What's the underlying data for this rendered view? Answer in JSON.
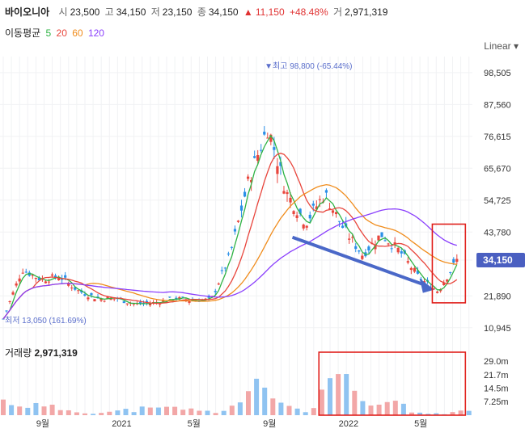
{
  "header": {
    "name": "바이오니아",
    "open_label": "시",
    "open": "23,500",
    "high_label": "고",
    "high": "34,150",
    "low_label": "저",
    "low": "23,150",
    "close_label": "종",
    "close": "34,150",
    "change_arrow": "▲",
    "change": "11,150",
    "change_pct": "+48.48%",
    "volume_label": "거",
    "volume": "2,971,319"
  },
  "ma_legend": {
    "label": "이동평균",
    "periods": [
      {
        "value": "5",
        "color": "#2fb344"
      },
      {
        "value": "20",
        "color": "#e8453c"
      },
      {
        "value": "60",
        "color": "#f08c1c"
      },
      {
        "value": "120",
        "color": "#8a3ffc"
      }
    ]
  },
  "scale_label": "Linear",
  "volume_panel": {
    "title": "거래량",
    "value": "2,971,319"
  },
  "colors": {
    "up": "#e8453c",
    "down": "#2a8fe8",
    "vol_up": "#f2a7a7",
    "vol_down": "#8fc3f1",
    "last_price_bg": "#4a5fc1",
    "arrow": "#4a68c8",
    "highlight_box": "#e0201c"
  },
  "chart_data": [
    {
      "type": "candlestick",
      "title": "",
      "x_ticks": [
        "9월",
        "2021",
        "5월",
        "9월",
        "2022",
        "5월"
      ],
      "y_ticks": [
        "98,505",
        "87,560",
        "76,615",
        "65,670",
        "54,725",
        "43,780",
        "34,150",
        "21,890",
        "10,945"
      ],
      "ylim": [
        7000,
        104000
      ],
      "last_price": "34,150",
      "annotations": [
        {
          "label": "▼최고 98,800 (-65.44%)",
          "x": "2021-09",
          "y": 98800
        },
        {
          "label": "최저 13,050 (161.69%)",
          "x": "2020-07",
          "y": 13050
        }
      ],
      "series": [
        {
          "name": "5",
          "type": "line",
          "color": "#2fb344"
        },
        {
          "name": "20",
          "type": "line",
          "color": "#e8453c"
        },
        {
          "name": "60",
          "type": "line",
          "color": "#f08c1c"
        },
        {
          "name": "120",
          "type": "line",
          "color": "#8a3ffc"
        }
      ],
      "close_points": [
        [
          "2020-07",
          14000
        ],
        [
          "2020-08",
          31000
        ],
        [
          "2020-09",
          27500
        ],
        [
          "2020-10",
          28500
        ],
        [
          "2020-11",
          23500
        ],
        [
          "2020-12",
          21000
        ],
        [
          "2021-01",
          21000
        ],
        [
          "2021-02",
          19000
        ],
        [
          "2021-03",
          19500
        ],
        [
          "2021-04",
          21000
        ],
        [
          "2021-05",
          20500
        ],
        [
          "2021-06",
          20500
        ],
        [
          "2021-07",
          36000
        ],
        [
          "2021-08",
          62000
        ],
        [
          "2021-09",
          80000
        ],
        [
          "2021-10",
          57000
        ],
        [
          "2021-11",
          47000
        ],
        [
          "2021-12",
          57000
        ],
        [
          "2022-01",
          45000
        ],
        [
          "2022-02",
          36000
        ],
        [
          "2022-03",
          43000
        ],
        [
          "2022-04",
          37000
        ],
        [
          "2022-05",
          28000
        ],
        [
          "2022-06",
          23500
        ],
        [
          "2022-07",
          34150
        ]
      ]
    },
    {
      "type": "bar",
      "title": "거래량",
      "y_ticks": [
        "29.0m",
        "21.7m",
        "14.5m",
        "7.25m"
      ],
      "ylim": [
        0,
        32
      ],
      "unit": "m",
      "values_by_month": [
        [
          "2020-07",
          8.5
        ],
        [
          "2020-08",
          7.5
        ],
        [
          "2020-09",
          5
        ],
        [
          "2020-10",
          4
        ],
        [
          "2020-11",
          2
        ],
        [
          "2020-12",
          1.5
        ],
        [
          "2021-01",
          2.5
        ],
        [
          "2021-02",
          4
        ],
        [
          "2021-03",
          3.5
        ],
        [
          "2021-04",
          5
        ],
        [
          "2021-05",
          2.5
        ],
        [
          "2021-06",
          2
        ],
        [
          "2021-07",
          7
        ],
        [
          "2021-08",
          16
        ],
        [
          "2021-09",
          12
        ],
        [
          "2021-10",
          4
        ],
        [
          "2021-11",
          3
        ],
        [
          "2021-12",
          28
        ],
        [
          "2022-01",
          12
        ],
        [
          "2022-02",
          4
        ],
        [
          "2022-03",
          10
        ],
        [
          "2022-04",
          2
        ],
        [
          "2022-05",
          1
        ],
        [
          "2022-06",
          1
        ],
        [
          "2022-07",
          2.97
        ]
      ]
    }
  ]
}
